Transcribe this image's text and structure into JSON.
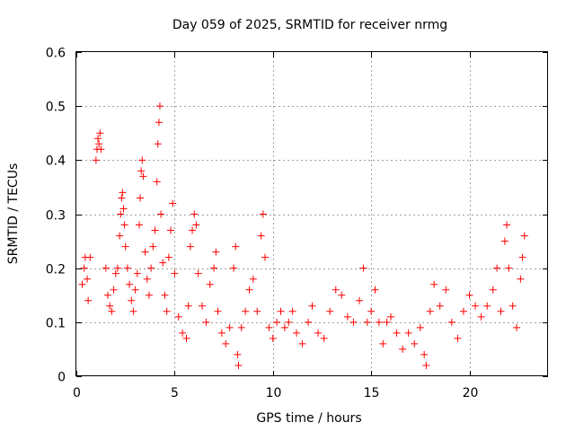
{
  "chart_data": {
    "type": "scatter",
    "title": "Day 059 of 2025, SRMTID for receiver nrmg",
    "xlabel": "GPS time / hours",
    "ylabel": "SRMTID / TECUs",
    "xlim": [
      0,
      24
    ],
    "ylim": [
      0,
      0.6
    ],
    "grid": true,
    "marker": "+",
    "marker_color": "#ff0000",
    "x_ticks": [
      0,
      5,
      10,
      15,
      20
    ],
    "x_tick_labels": [
      "0",
      "5",
      "10",
      "15",
      "20"
    ],
    "y_ticks": [
      0,
      0.1,
      0.2,
      0.3,
      0.4,
      0.5,
      0.6
    ],
    "y_tick_labels": [
      "0",
      "0.1",
      "0.2",
      "0.3",
      "0.4",
      "0.5",
      "0.6"
    ],
    "series": [
      {
        "name": "SRMTID",
        "points": [
          [
            0.3,
            0.17
          ],
          [
            0.4,
            0.2
          ],
          [
            0.45,
            0.22
          ],
          [
            0.55,
            0.18
          ],
          [
            0.6,
            0.14
          ],
          [
            0.7,
            0.22
          ],
          [
            1.0,
            0.4
          ],
          [
            1.05,
            0.42
          ],
          [
            1.1,
            0.44
          ],
          [
            1.15,
            0.43
          ],
          [
            1.2,
            0.45
          ],
          [
            1.25,
            0.42
          ],
          [
            1.5,
            0.2
          ],
          [
            1.6,
            0.15
          ],
          [
            1.7,
            0.13
          ],
          [
            1.8,
            0.12
          ],
          [
            1.9,
            0.16
          ],
          [
            2.0,
            0.19
          ],
          [
            2.1,
            0.2
          ],
          [
            2.2,
            0.26
          ],
          [
            2.25,
            0.3
          ],
          [
            2.3,
            0.33
          ],
          [
            2.35,
            0.34
          ],
          [
            2.4,
            0.31
          ],
          [
            2.45,
            0.28
          ],
          [
            2.5,
            0.24
          ],
          [
            2.6,
            0.2
          ],
          [
            2.7,
            0.17
          ],
          [
            2.8,
            0.14
          ],
          [
            2.9,
            0.12
          ],
          [
            3.0,
            0.16
          ],
          [
            3.1,
            0.19
          ],
          [
            3.2,
            0.28
          ],
          [
            3.25,
            0.33
          ],
          [
            3.3,
            0.38
          ],
          [
            3.35,
            0.4
          ],
          [
            3.4,
            0.37
          ],
          [
            3.5,
            0.23
          ],
          [
            3.6,
            0.18
          ],
          [
            3.7,
            0.15
          ],
          [
            3.8,
            0.2
          ],
          [
            3.9,
            0.24
          ],
          [
            4.0,
            0.27
          ],
          [
            4.1,
            0.36
          ],
          [
            4.15,
            0.43
          ],
          [
            4.2,
            0.47
          ],
          [
            4.25,
            0.5
          ],
          [
            4.3,
            0.3
          ],
          [
            4.4,
            0.21
          ],
          [
            4.5,
            0.15
          ],
          [
            4.6,
            0.12
          ],
          [
            4.7,
            0.22
          ],
          [
            4.8,
            0.27
          ],
          [
            4.9,
            0.32
          ],
          [
            5.0,
            0.19
          ],
          [
            5.2,
            0.11
          ],
          [
            5.4,
            0.08
          ],
          [
            5.6,
            0.07
          ],
          [
            5.7,
            0.13
          ],
          [
            5.8,
            0.24
          ],
          [
            5.9,
            0.27
          ],
          [
            6.0,
            0.3
          ],
          [
            6.1,
            0.28
          ],
          [
            6.2,
            0.19
          ],
          [
            6.4,
            0.13
          ],
          [
            6.6,
            0.1
          ],
          [
            6.8,
            0.17
          ],
          [
            7.0,
            0.2
          ],
          [
            7.1,
            0.23
          ],
          [
            7.2,
            0.12
          ],
          [
            7.4,
            0.08
          ],
          [
            7.6,
            0.06
          ],
          [
            7.8,
            0.09
          ],
          [
            8.0,
            0.2
          ],
          [
            8.1,
            0.24
          ],
          [
            8.2,
            0.04
          ],
          [
            8.25,
            0.02
          ],
          [
            8.4,
            0.09
          ],
          [
            8.6,
            0.12
          ],
          [
            8.8,
            0.16
          ],
          [
            9.0,
            0.18
          ],
          [
            9.2,
            0.12
          ],
          [
            9.4,
            0.26
          ],
          [
            9.5,
            0.3
          ],
          [
            9.6,
            0.22
          ],
          [
            9.8,
            0.09
          ],
          [
            10.0,
            0.07
          ],
          [
            10.2,
            0.1
          ],
          [
            10.4,
            0.12
          ],
          [
            10.6,
            0.09
          ],
          [
            10.8,
            0.1
          ],
          [
            11.0,
            0.12
          ],
          [
            11.2,
            0.08
          ],
          [
            11.5,
            0.06
          ],
          [
            11.8,
            0.1
          ],
          [
            12.0,
            0.13
          ],
          [
            12.3,
            0.08
          ],
          [
            12.6,
            0.07
          ],
          [
            12.9,
            0.12
          ],
          [
            13.2,
            0.16
          ],
          [
            13.5,
            0.15
          ],
          [
            13.8,
            0.11
          ],
          [
            14.1,
            0.1
          ],
          [
            14.4,
            0.14
          ],
          [
            14.6,
            0.2
          ],
          [
            14.8,
            0.1
          ],
          [
            15.0,
            0.12
          ],
          [
            15.2,
            0.16
          ],
          [
            15.4,
            0.1
          ],
          [
            15.6,
            0.06
          ],
          [
            15.8,
            0.1
          ],
          [
            16.0,
            0.11
          ],
          [
            16.3,
            0.08
          ],
          [
            16.6,
            0.05
          ],
          [
            16.9,
            0.08
          ],
          [
            17.2,
            0.06
          ],
          [
            17.5,
            0.09
          ],
          [
            17.7,
            0.04
          ],
          [
            17.8,
            0.02
          ],
          [
            18.0,
            0.12
          ],
          [
            18.2,
            0.17
          ],
          [
            18.5,
            0.13
          ],
          [
            18.8,
            0.16
          ],
          [
            19.1,
            0.1
          ],
          [
            19.4,
            0.07
          ],
          [
            19.7,
            0.12
          ],
          [
            20.0,
            0.15
          ],
          [
            20.3,
            0.13
          ],
          [
            20.6,
            0.11
          ],
          [
            20.9,
            0.13
          ],
          [
            21.2,
            0.16
          ],
          [
            21.4,
            0.2
          ],
          [
            21.6,
            0.12
          ],
          [
            21.8,
            0.25
          ],
          [
            21.9,
            0.28
          ],
          [
            22.0,
            0.2
          ],
          [
            22.2,
            0.13
          ],
          [
            22.4,
            0.09
          ],
          [
            22.6,
            0.18
          ],
          [
            22.7,
            0.22
          ],
          [
            22.8,
            0.26
          ]
        ]
      }
    ]
  }
}
